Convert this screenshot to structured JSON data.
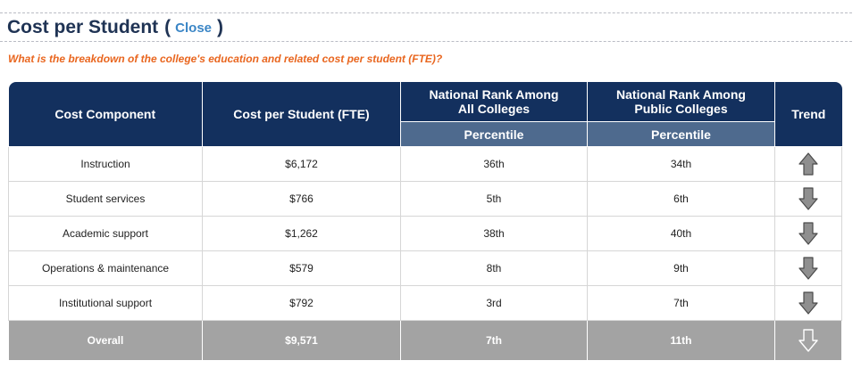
{
  "header": {
    "title": "Cost per Student",
    "paren_open": "(",
    "close_label": "Close",
    "paren_close": ")"
  },
  "question": "What is the breakdown of the college's education and related cost per student (FTE)?",
  "table": {
    "columns": {
      "component": "Cost Component",
      "cost": "Cost per Student (FTE)",
      "rank_all_line1": "National Rank Among",
      "rank_all_line2": "All Colleges",
      "rank_public_line1": "National Rank Among",
      "rank_public_line2": "Public Colleges",
      "trend": "Trend",
      "percentile_all": "Percentile",
      "percentile_public": "Percentile"
    },
    "rows": [
      {
        "component": "Instruction",
        "cost": "$6,172",
        "rank_all": "36th",
        "rank_public": "34th",
        "trend": "up"
      },
      {
        "component": "Student services",
        "cost": "$766",
        "rank_all": "5th",
        "rank_public": "6th",
        "trend": "down"
      },
      {
        "component": "Academic support",
        "cost": "$1,262",
        "rank_all": "38th",
        "rank_public": "40th",
        "trend": "down"
      },
      {
        "component": "Operations & maintenance",
        "cost": "$579",
        "rank_all": "8th",
        "rank_public": "9th",
        "trend": "down"
      },
      {
        "component": "Institutional support",
        "cost": "$792",
        "rank_all": "3rd",
        "rank_public": "7th",
        "trend": "down"
      }
    ],
    "overall": {
      "component": "Overall",
      "cost": "$9,571",
      "rank_all": "7th",
      "rank_public": "11th",
      "trend": "down"
    }
  },
  "colors": {
    "title": "#1f3354",
    "link": "#3b86c6",
    "question": "#e9661f",
    "header_bg": "#13305e",
    "subheader_bg": "#4e6a8e",
    "overall_bg": "#a3a3a3",
    "arrow_fill": "#8f8f8f"
  },
  "icons": {
    "up": "trend-up-arrow-icon",
    "down": "trend-down-arrow-icon"
  }
}
